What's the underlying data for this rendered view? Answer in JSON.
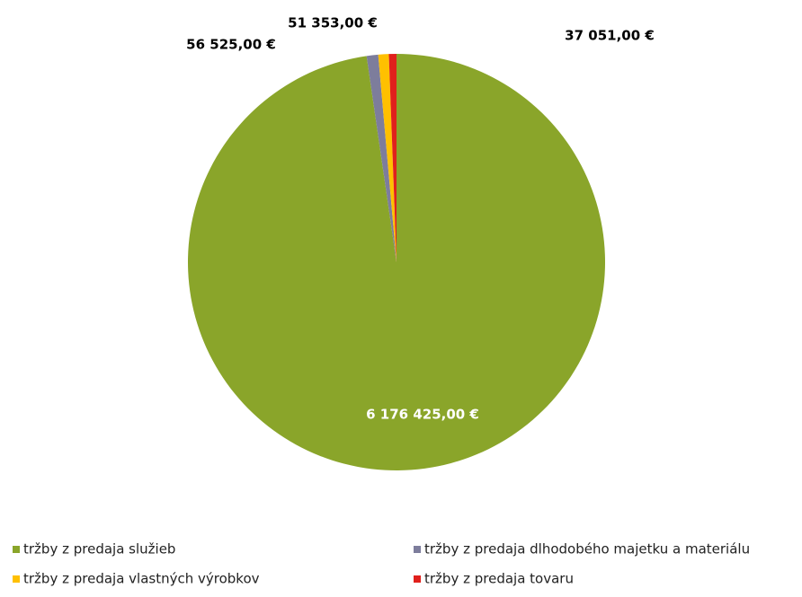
{
  "chart_data": {
    "type": "pie",
    "categories": [
      "tržby z predaja služieb",
      "tržby z predaja dlhodobého majetku a materiálu",
      "tržby z predaja vlastných výrobkov",
      "tržby z predaja tovaru"
    ],
    "values": [
      6176425,
      56525,
      51353,
      37051
    ],
    "value_labels": [
      "6 176 425,00 €",
      "56 525,00 €",
      "51 353,00 €",
      "37 051,00 €"
    ],
    "colors": [
      "#8aa52a",
      "#7d7d9c",
      "#ffc000",
      "#e0201c"
    ]
  }
}
